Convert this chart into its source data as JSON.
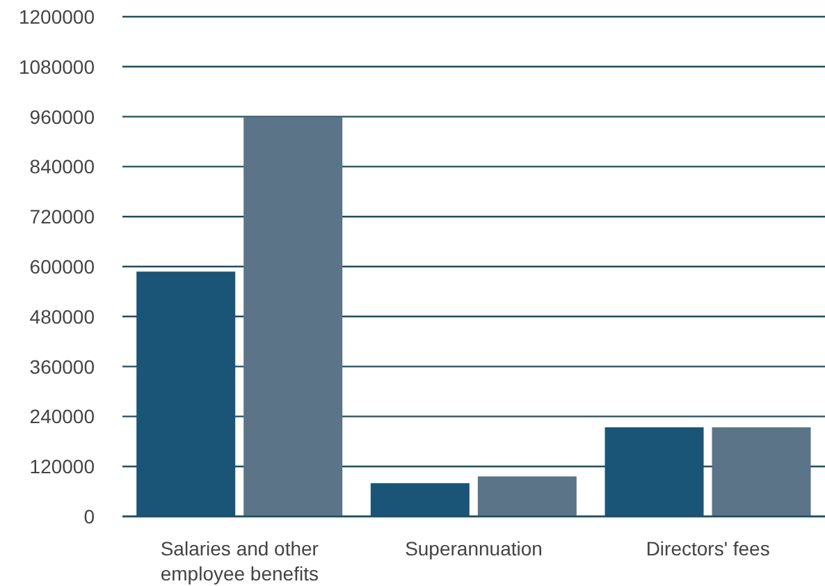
{
  "chart_data": {
    "type": "bar",
    "categories": [
      "Salaries and other employee benefits",
      "Superannuation",
      "Directors' fees"
    ],
    "series": [
      {
        "color": "#1a5577",
        "values": [
          588000,
          80000,
          214000
        ]
      },
      {
        "color": "#5b7488",
        "values": [
          959000,
          96000,
          214000
        ]
      }
    ],
    "ylim": [
      0,
      1200000
    ],
    "yticks": [
      0,
      120000,
      240000,
      360000,
      480000,
      600000,
      720000,
      840000,
      960000,
      1080000,
      1200000
    ],
    "grid": "y"
  }
}
